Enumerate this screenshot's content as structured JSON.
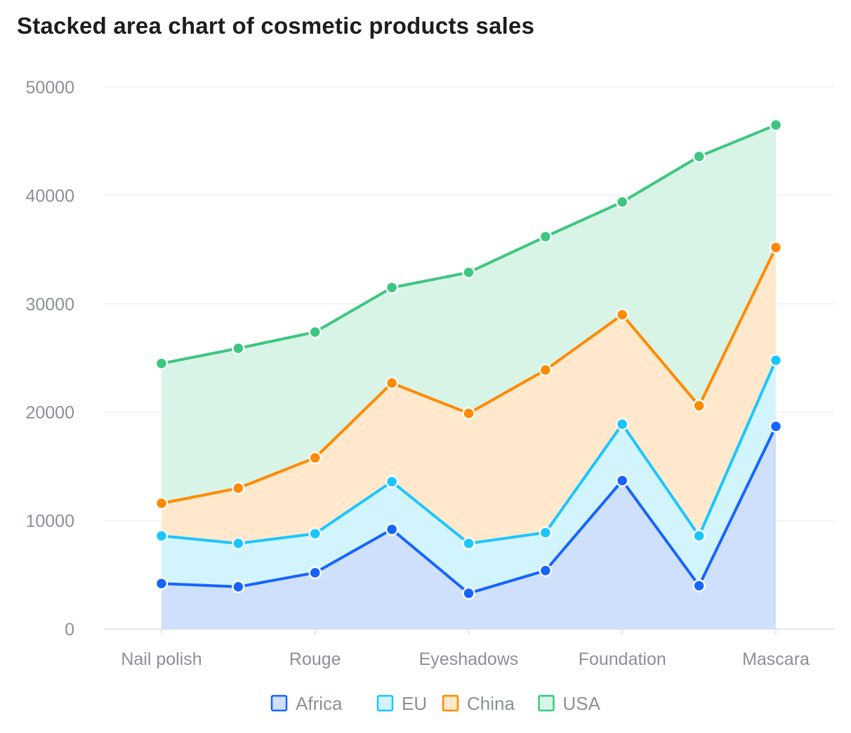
{
  "chart_data": {
    "type": "area",
    "stacked": true,
    "title": "Stacked area chart of cosmetic products sales",
    "xlabel": "",
    "ylabel": "",
    "ylim": [
      0,
      50000
    ],
    "yticks": [
      0,
      10000,
      20000,
      30000,
      40000,
      50000
    ],
    "x": [
      "Nail polish",
      "",
      "Rouge",
      "",
      "Eyeshadows",
      "",
      "Foundation",
      "",
      "Mascara"
    ],
    "tick_labels": [
      "Nail polish",
      "Rouge",
      "Eyeshadows",
      "Foundation",
      "Mascara"
    ],
    "grid": true,
    "legend_position": "bottom",
    "series": [
      {
        "name": "Africa",
        "color": "#1664ff",
        "fill": "#cfe0fd",
        "values": [
          4200,
          3900,
          5200,
          9200,
          3300,
          5400,
          13700,
          4000,
          18700
        ]
      },
      {
        "name": "EU",
        "color": "#1ac6ff",
        "fill": "#d2f4fd",
        "values": [
          4400,
          4000,
          3600,
          4400,
          4600,
          3500,
          5200,
          4600,
          6100
        ]
      },
      {
        "name": "China",
        "color": "#ff8a00",
        "fill": "#ffe8cc",
        "values": [
          3000,
          5100,
          7000,
          9100,
          12000,
          15000,
          10100,
          12000,
          10400
        ]
      },
      {
        "name": "USA",
        "color": "#3cc780",
        "fill": "#d8f4e6",
        "values": [
          12900,
          12900,
          11600,
          8800,
          13000,
          12300,
          10400,
          23000,
          11300
        ]
      }
    ]
  }
}
